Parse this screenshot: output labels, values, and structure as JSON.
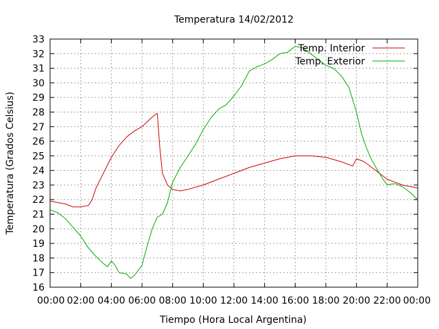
{
  "chart_data": {
    "type": "line",
    "title": "Temperatura 14/02/2012",
    "xlabel": "Tiempo (Hora Local Argentina)",
    "ylabel": "Temperatura (Grados Celsius)",
    "xlim": [
      "00:00",
      "24:00"
    ],
    "ylim": [
      16,
      33
    ],
    "x_ticks": [
      "00:00",
      "02:00",
      "04:00",
      "06:00",
      "08:00",
      "10:00",
      "12:00",
      "14:00",
      "16:00",
      "18:00",
      "20:00",
      "22:00",
      "00:00"
    ],
    "y_ticks": [
      16,
      17,
      18,
      19,
      20,
      21,
      22,
      23,
      24,
      25,
      26,
      27,
      28,
      29,
      30,
      31,
      32,
      33
    ],
    "grid": true,
    "legend_position": "top-right",
    "series": [
      {
        "name": "Temp. Interior",
        "color": "#cc0000",
        "points": [
          [
            "00:00",
            21.9
          ],
          [
            "00:30",
            21.8
          ],
          [
            "01:00",
            21.7
          ],
          [
            "01:30",
            21.5
          ],
          [
            "02:00",
            21.5
          ],
          [
            "02:30",
            21.6
          ],
          [
            "02:45",
            22.0
          ],
          [
            "03:00",
            22.8
          ],
          [
            "03:20",
            23.5
          ],
          [
            "03:40",
            24.2
          ],
          [
            "04:00",
            24.9
          ],
          [
            "04:30",
            25.7
          ],
          [
            "05:00",
            26.3
          ],
          [
            "05:30",
            26.7
          ],
          [
            "06:00",
            27.0
          ],
          [
            "06:30",
            27.5
          ],
          [
            "06:50",
            27.8
          ],
          [
            "07:00",
            27.9
          ],
          [
            "07:10",
            25.5
          ],
          [
            "07:20",
            23.8
          ],
          [
            "07:40",
            23.0
          ],
          [
            "08:00",
            22.7
          ],
          [
            "08:30",
            22.6
          ],
          [
            "09:00",
            22.7
          ],
          [
            "10:00",
            23.0
          ],
          [
            "11:00",
            23.4
          ],
          [
            "12:00",
            23.8
          ],
          [
            "13:00",
            24.2
          ],
          [
            "14:00",
            24.5
          ],
          [
            "15:00",
            24.8
          ],
          [
            "16:00",
            25.0
          ],
          [
            "17:00",
            25.0
          ],
          [
            "18:00",
            24.9
          ],
          [
            "19:00",
            24.6
          ],
          [
            "19:45",
            24.3
          ],
          [
            "20:00",
            24.8
          ],
          [
            "20:30",
            24.6
          ],
          [
            "21:00",
            24.2
          ],
          [
            "21:30",
            23.8
          ],
          [
            "22:00",
            23.4
          ],
          [
            "22:30",
            23.2
          ],
          [
            "23:00",
            23.0
          ],
          [
            "23:30",
            22.9
          ],
          [
            "24:00",
            22.8
          ]
        ]
      },
      {
        "name": "Temp. Exterior",
        "color": "#00aa00",
        "points": [
          [
            "00:00",
            21.3
          ],
          [
            "00:30",
            21.1
          ],
          [
            "01:00",
            20.7
          ],
          [
            "01:30",
            20.1
          ],
          [
            "02:00",
            19.5
          ],
          [
            "02:30",
            18.7
          ],
          [
            "03:00",
            18.1
          ],
          [
            "03:30",
            17.6
          ],
          [
            "03:45",
            17.4
          ],
          [
            "04:00",
            17.8
          ],
          [
            "04:15",
            17.5
          ],
          [
            "04:30",
            17.0
          ],
          [
            "05:00",
            16.9
          ],
          [
            "05:15",
            16.6
          ],
          [
            "05:30",
            16.8
          ],
          [
            "06:00",
            17.5
          ],
          [
            "06:20",
            18.8
          ],
          [
            "06:40",
            20.0
          ],
          [
            "07:00",
            20.8
          ],
          [
            "07:20",
            21.0
          ],
          [
            "07:40",
            21.8
          ],
          [
            "08:00",
            23.2
          ],
          [
            "08:30",
            24.2
          ],
          [
            "09:00",
            25.0
          ],
          [
            "09:30",
            25.8
          ],
          [
            "10:00",
            26.8
          ],
          [
            "10:30",
            27.6
          ],
          [
            "11:00",
            28.2
          ],
          [
            "11:30",
            28.5
          ],
          [
            "12:00",
            29.1
          ],
          [
            "12:30",
            29.8
          ],
          [
            "13:00",
            30.8
          ],
          [
            "13:30",
            31.1
          ],
          [
            "14:00",
            31.3
          ],
          [
            "14:30",
            31.6
          ],
          [
            "15:00",
            32.0
          ],
          [
            "15:30",
            32.1
          ],
          [
            "16:00",
            32.5
          ],
          [
            "16:30",
            32.4
          ],
          [
            "17:00",
            32.0
          ],
          [
            "17:30",
            31.6
          ],
          [
            "18:00",
            31.2
          ],
          [
            "18:30",
            31.0
          ],
          [
            "19:00",
            30.5
          ],
          [
            "19:30",
            29.7
          ],
          [
            "20:00",
            28.0
          ],
          [
            "20:20",
            26.5
          ],
          [
            "20:40",
            25.5
          ],
          [
            "21:00",
            24.7
          ],
          [
            "21:20",
            24.1
          ],
          [
            "21:40",
            23.5
          ],
          [
            "22:00",
            23.0
          ],
          [
            "22:30",
            23.1
          ],
          [
            "23:00",
            22.9
          ],
          [
            "23:30",
            22.5
          ],
          [
            "24:00",
            22.0
          ]
        ]
      }
    ]
  }
}
